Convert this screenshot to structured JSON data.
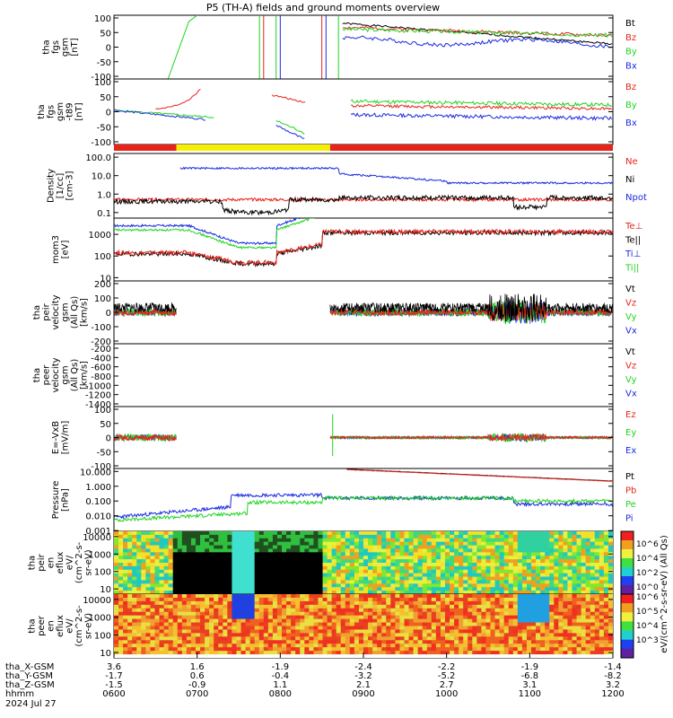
{
  "title": "P5 (TH-A) fields and ground moments overview",
  "colors": {
    "black": "#000000",
    "red": "#e8231a",
    "green": "#1fd41f",
    "blue": "#1a2ae0",
    "yellow": "#f6f000"
  },
  "panels": [
    {
      "id": "fgs",
      "ylabel": [
        "tha",
        "fgs",
        "gsm",
        "[nT]"
      ],
      "ticks": [
        "100",
        "50",
        "0",
        "-50",
        "-100"
      ],
      "legend": [
        {
          "t": "Bt",
          "c": "black"
        },
        {
          "t": "Bz",
          "c": "red"
        },
        {
          "t": "By",
          "c": "green"
        },
        {
          "t": "Bx",
          "c": "blue"
        }
      ]
    },
    {
      "id": "fgs_ci",
      "ylabel": [
        "tha",
        "fgs",
        "gsm",
        "-t89",
        "[nT]"
      ],
      "ticks": [
        "100",
        "50",
        "0",
        "-50",
        "-100"
      ],
      "legend": [
        {
          "t": "Bz",
          "c": "red"
        },
        {
          "t": "By",
          "c": "green"
        },
        {
          "t": "Bx",
          "c": "blue"
        }
      ]
    },
    {
      "id": "density",
      "ylabel": [
        "Density",
        "[1/cc]",
        "[cm-3]"
      ],
      "ticks": [
        "100.0",
        "10.0",
        "1.0",
        "0.1"
      ],
      "legend": [
        {
          "t": "Ne",
          "c": "red"
        },
        {
          "t": "Ni",
          "c": "black"
        },
        {
          "t": "Npot",
          "c": "blue"
        }
      ]
    },
    {
      "id": "temp",
      "ylabel": [
        "mom3",
        "[eV]"
      ],
      "ticks": [
        "1000",
        "100",
        "10"
      ],
      "legend": [
        {
          "t": "Te⊥",
          "c": "red"
        },
        {
          "t": "Te||",
          "c": "black"
        },
        {
          "t": "Ti⊥",
          "c": "blue"
        },
        {
          "t": "Ti||",
          "c": "green"
        }
      ]
    },
    {
      "id": "peir_vel",
      "ylabel": [
        "tha",
        "peir",
        "velocity",
        "gsm",
        "(All Qs)",
        "[km/s]"
      ],
      "ticks": [
        "200",
        "100",
        "0",
        "-100",
        "-200"
      ],
      "legend": [
        {
          "t": "Vt",
          "c": "black"
        },
        {
          "t": "Vz",
          "c": "red"
        },
        {
          "t": "Vy",
          "c": "green"
        },
        {
          "t": "Vx",
          "c": "blue"
        }
      ]
    },
    {
      "id": "peer_vel",
      "ylabel": [
        "tha",
        "peer",
        "velocity",
        "gsm",
        "(All Qs)",
        "[km/s]"
      ],
      "ticks": [
        "-200",
        "-400",
        "-600",
        "-800",
        "-1000",
        "-1200",
        "-1400"
      ],
      "legend": [
        {
          "t": "Vt",
          "c": "black"
        },
        {
          "t": "Vz",
          "c": "red"
        },
        {
          "t": "Vy",
          "c": "green"
        },
        {
          "t": "Vx",
          "c": "blue"
        }
      ]
    },
    {
      "id": "efield",
      "ylabel": [
        "E=-VxB",
        "[mV/m]"
      ],
      "ticks": [
        "100",
        "50",
        "0",
        "-50",
        "-100"
      ],
      "legend": [
        {
          "t": "Ez",
          "c": "red"
        },
        {
          "t": "Ey",
          "c": "green"
        },
        {
          "t": "Ex",
          "c": "blue"
        }
      ]
    },
    {
      "id": "pressure",
      "ylabel": [
        "Pressure",
        "[nPa]"
      ],
      "ticks": [
        "10.000",
        "1.000",
        "0.100",
        "0.010",
        "0.001"
      ],
      "legend": [
        {
          "t": "Pt",
          "c": "black"
        },
        {
          "t": "Pb",
          "c": "red"
        },
        {
          "t": "Pe",
          "c": "green"
        },
        {
          "t": "Pi",
          "c": "blue"
        }
      ]
    },
    {
      "id": "peir_en",
      "ylabel": [
        "tha",
        "peir",
        "en",
        "eflux",
        "eV/",
        "(cm^2-s-",
        "sr-eV)"
      ],
      "ticks": [
        "10000",
        "1000",
        "100",
        "10"
      ]
    },
    {
      "id": "peer_en",
      "ylabel": [
        "tha",
        "peer",
        "en",
        "eflux",
        "eV/",
        "(cm^2-s-",
        "sr-eV)"
      ],
      "ticks": [
        "10000",
        "1000",
        "100",
        "10"
      ]
    }
  ],
  "colorbar": {
    "ticks": [
      "10^6",
      "10^4",
      "10^2",
      "10^0",
      "10^6",
      "10^5",
      "10^4",
      "10^3"
    ],
    "label": "eV/(cm^2-s-sr-eV) (All Qs)"
  },
  "axis": {
    "rows": [
      {
        "name": "tha_X-GSM",
        "values": [
          "3.6",
          "1.6",
          "-1.9",
          "-2.4",
          "-2.2",
          "-1.9",
          "-1.4"
        ]
      },
      {
        "name": "tha_Y-GSM",
        "values": [
          "-1.7",
          "0.6",
          "-0.4",
          "-3.2",
          "-5.2",
          "-6.8",
          "-8.2"
        ]
      },
      {
        "name": "tha_Z-GSM",
        "values": [
          "-1.5",
          "-0.9",
          "1.1",
          "2.1",
          "2.7",
          "3.1",
          "3.2"
        ]
      },
      {
        "name": "hhmm",
        "values": [
          "0600",
          "0700",
          "0800",
          "0900",
          "1000",
          "1100",
          "1200"
        ]
      }
    ],
    "date": "2024 Jul 27"
  },
  "chart_data": {
    "type": "line",
    "title": "P5 (TH-A) fields and ground moments overview",
    "x": [
      "0600",
      "0700",
      "0800",
      "0900",
      "1000",
      "1100",
      "1200"
    ],
    "xlabel": "hhmm",
    "series": [
      {
        "name": "Bt",
        "values": [
          null,
          null,
          null,
          90,
          80,
          80,
          80
        ]
      },
      {
        "name": "Bz",
        "values": [
          null,
          null,
          null,
          60,
          40,
          35,
          30
        ]
      },
      {
        "name": "By",
        "values": [
          null,
          null,
          null,
          45,
          35,
          30,
          25
        ]
      },
      {
        "name": "Bx",
        "values": [
          null,
          null,
          null,
          15,
          10,
          5,
          0
        ]
      }
    ],
    "ylim": [
      -100,
      100
    ]
  }
}
